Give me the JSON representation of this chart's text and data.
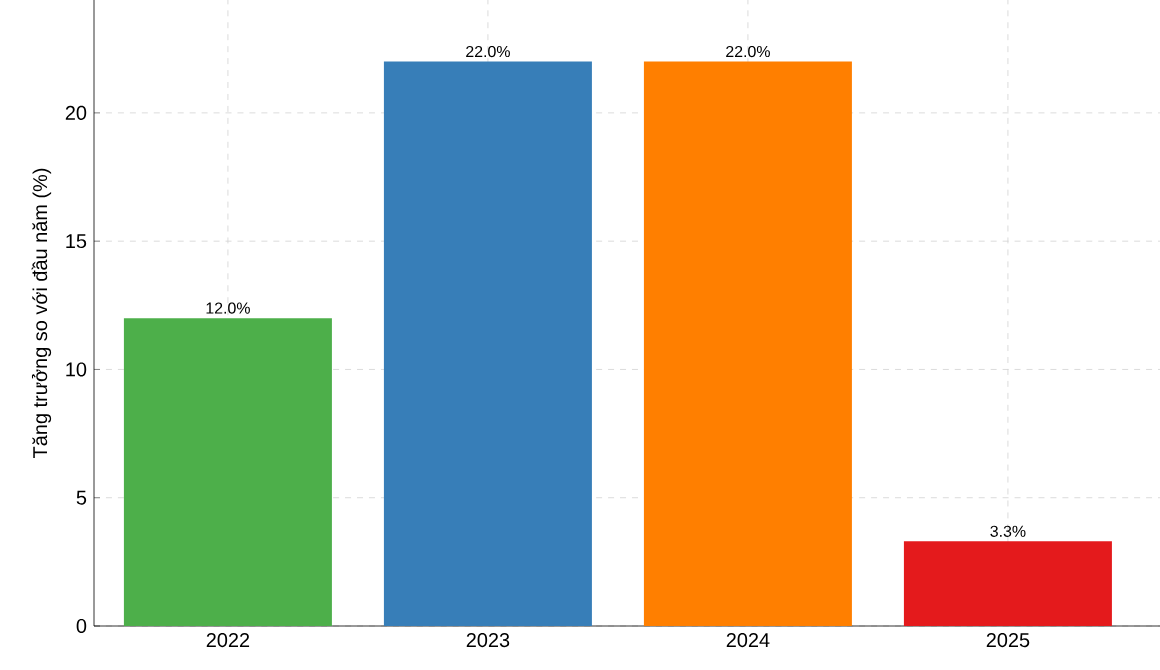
{
  "chart_data": {
    "type": "bar",
    "ylabel": "Tăng trưởng so với đầu năm (%)",
    "categories": [
      "2022",
      "2023",
      "2024",
      "2025"
    ],
    "values": [
      12,
      22,
      22,
      3.3
    ],
    "colors": [
      "#4daf4a",
      "#377eb8",
      "#ff7f00",
      "#e41a1c"
    ],
    "value_labels": [
      "12.0%",
      "22.0%",
      "22.0%",
      "3.3%"
    ],
    "ylim": [
      0,
      24.4
    ],
    "yticks": [
      0,
      5,
      10,
      15,
      20
    ],
    "grid": true
  }
}
